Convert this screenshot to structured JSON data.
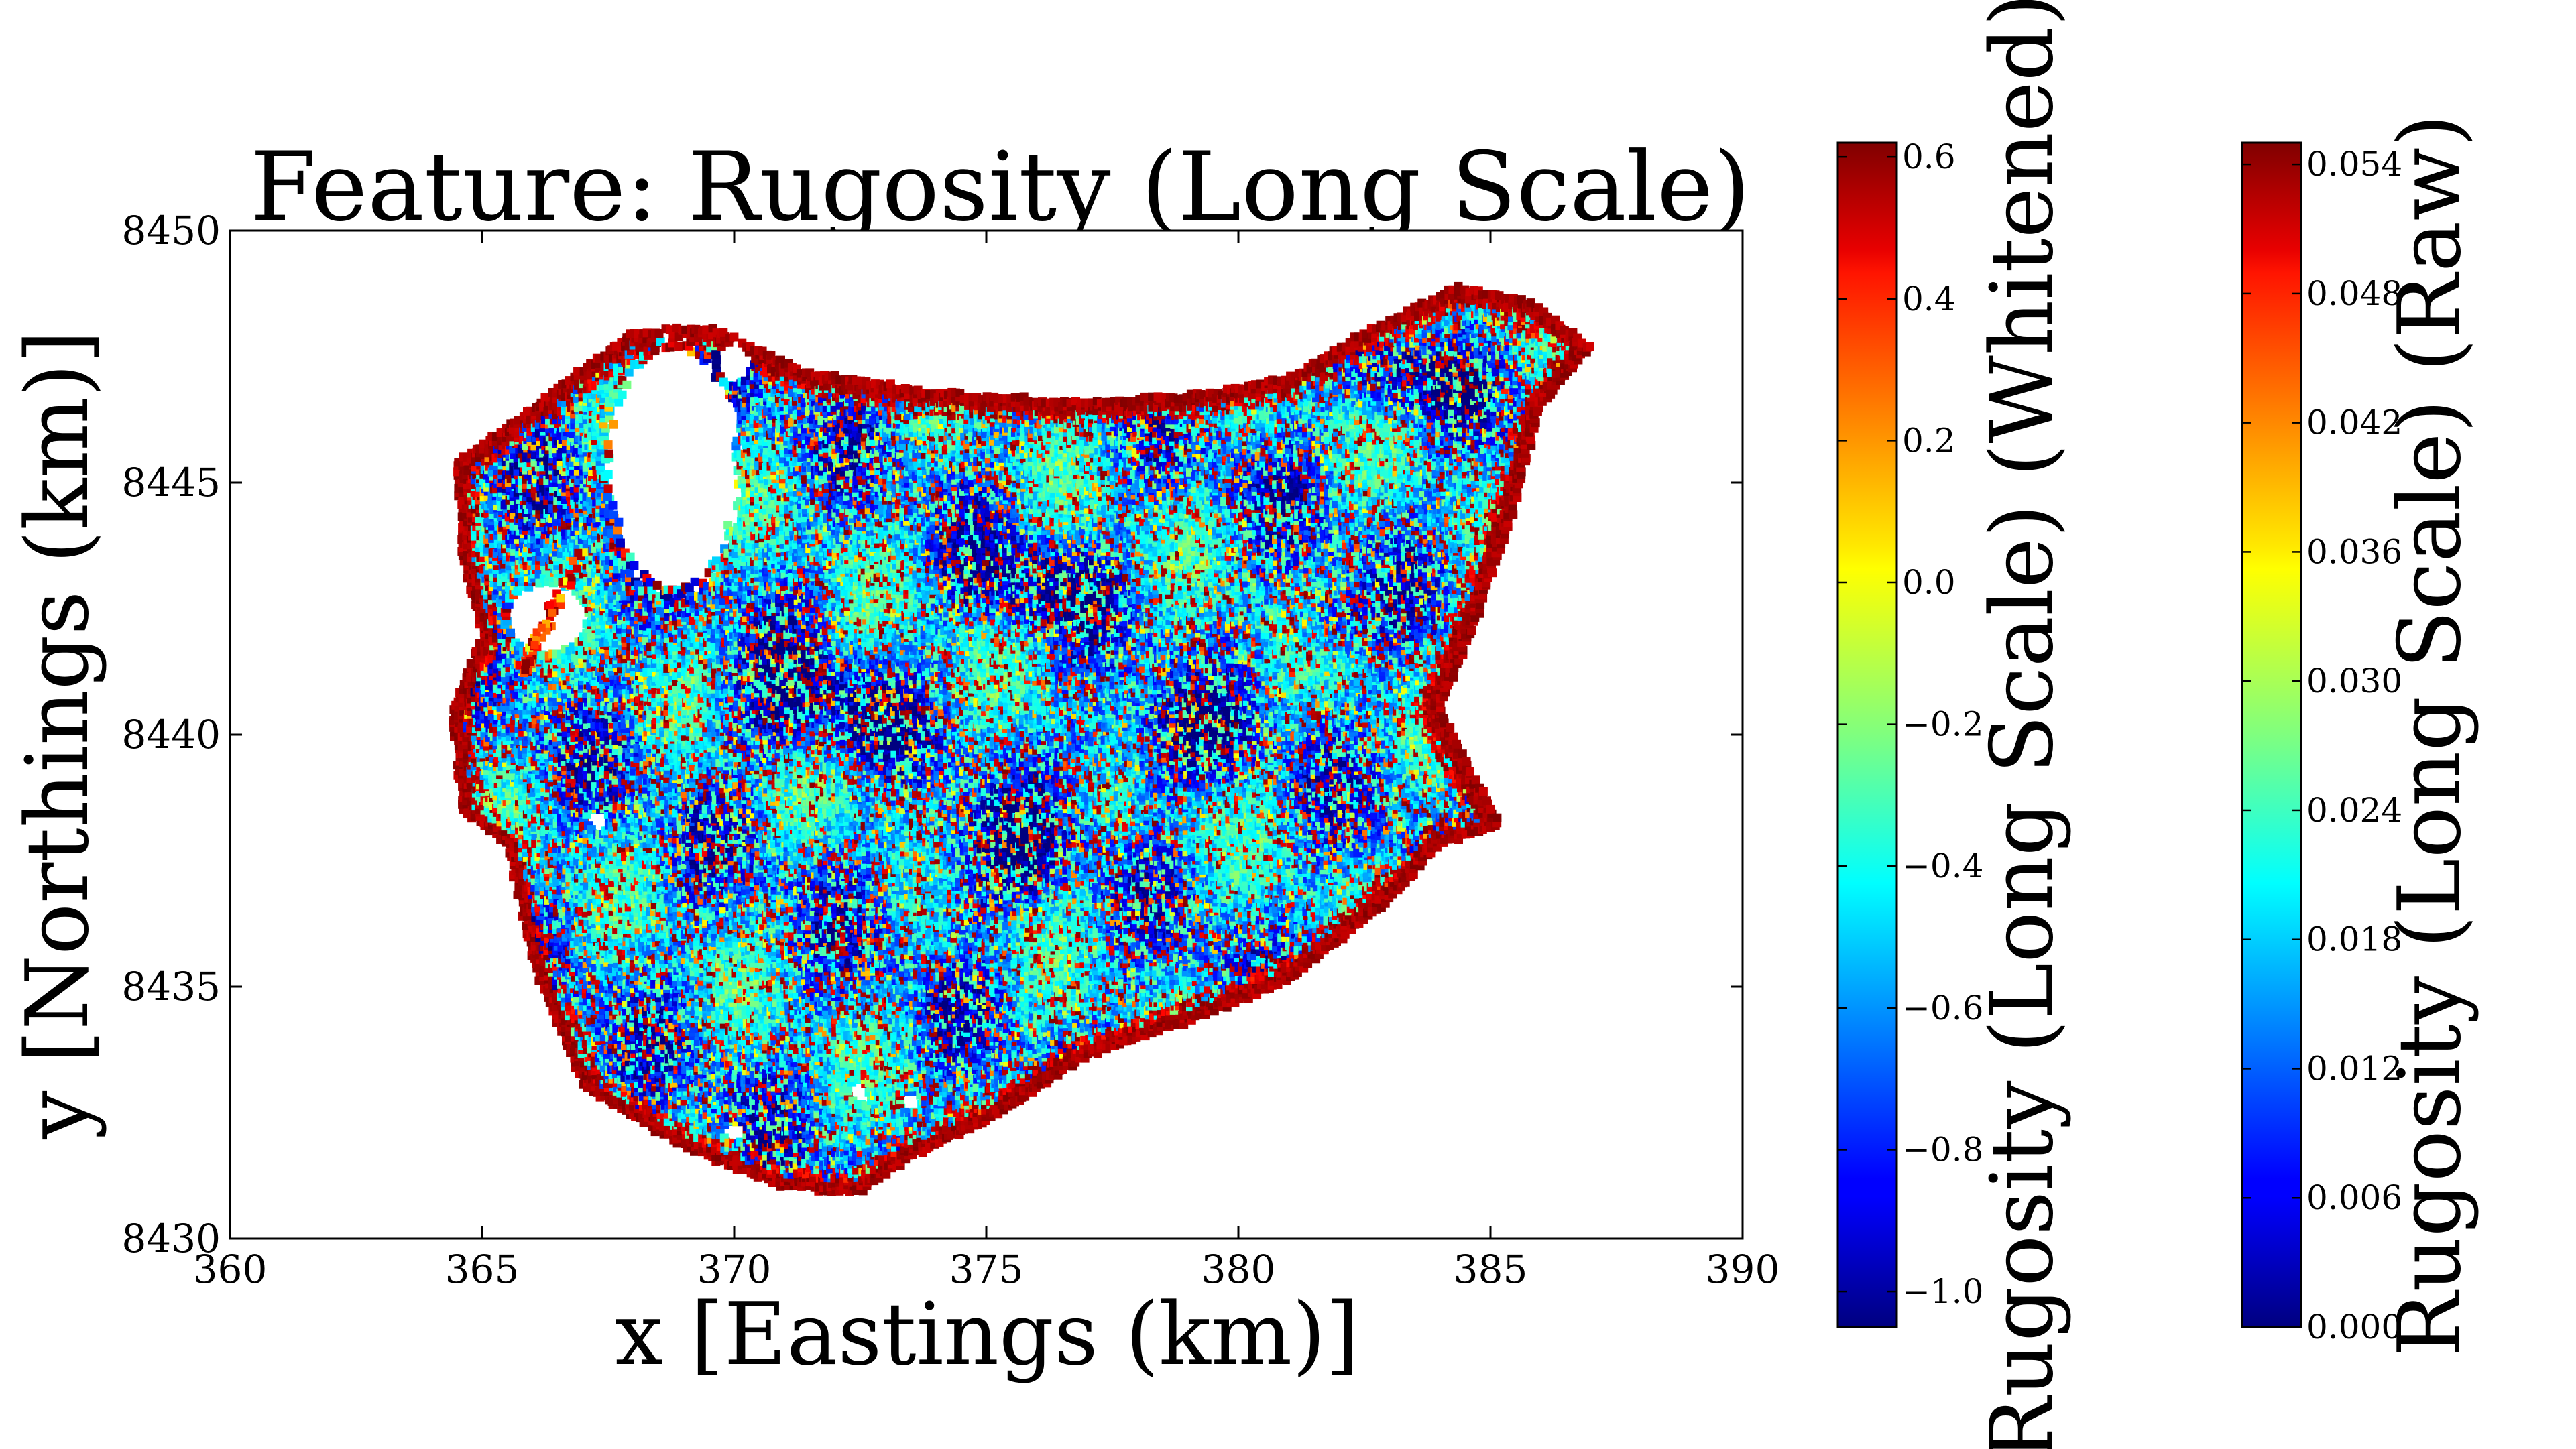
{
  "chart_data": {
    "type": "scatter",
    "title": "Feature: Rugosity (Long Scale)",
    "xlabel": "x [Eastings (km)]",
    "ylabel": "y [Northings (km)]",
    "xlim": [
      360,
      390
    ],
    "ylim": [
      8430,
      8450
    ],
    "xticks": [
      "360",
      "365",
      "370",
      "375",
      "380",
      "385",
      "390"
    ],
    "yticks": [
      "8430",
      "8435",
      "8440",
      "8445",
      "8450"
    ],
    "grid": false,
    "colormap": "jet",
    "colorbars": [
      {
        "label": "Rugosity (Long Scale) (Whitened)",
        "range": [
          -1.05,
          0.62
        ],
        "ticks": [
          "0.6",
          "0.4",
          "0.2",
          "0.0",
          "−0.2",
          "−0.4",
          "−0.6",
          "−0.8",
          "−1.0"
        ],
        "tick_values": [
          0.6,
          0.4,
          0.2,
          0.0,
          -0.2,
          -0.4,
          -0.6,
          -0.8,
          -1.0
        ]
      },
      {
        "label": "Rugosity (Long Scale) (Raw)",
        "range": [
          0.0,
          0.055
        ],
        "ticks": [
          "0.054",
          "0.048",
          "0.042",
          "0.036",
          "0.030",
          "0.024",
          "0.018",
          "0.012",
          "0.006",
          "0.000"
        ],
        "tick_values": [
          0.054,
          0.048,
          0.042,
          0.036,
          0.03,
          0.024,
          0.018,
          0.012,
          0.006,
          0.0
        ]
      }
    ],
    "survey_outline": [
      [
        364.5,
        8445.4
      ],
      [
        366.0,
        8446.5
      ],
      [
        368.0,
        8448.0
      ],
      [
        369.5,
        8448.1
      ],
      [
        371.5,
        8447.2
      ],
      [
        374.0,
        8446.8
      ],
      [
        377.0,
        8446.6
      ],
      [
        379.5,
        8446.8
      ],
      [
        381.0,
        8447.1
      ],
      [
        382.5,
        8448.0
      ],
      [
        384.3,
        8448.9
      ],
      [
        385.8,
        8448.6
      ],
      [
        387.0,
        8447.7
      ],
      [
        386.0,
        8446.5
      ],
      [
        385.5,
        8444.5
      ],
      [
        384.8,
        8442.5
      ],
      [
        384.0,
        8440.5
      ],
      [
        385.2,
        8438.2
      ],
      [
        384.0,
        8437.8
      ],
      [
        383.0,
        8436.7
      ],
      [
        381.0,
        8435.1
      ],
      [
        379.0,
        8434.3
      ],
      [
        377.0,
        8433.6
      ],
      [
        375.0,
        8432.3
      ],
      [
        373.5,
        8431.6
      ],
      [
        372.5,
        8430.9
      ],
      [
        371.0,
        8431.0
      ],
      [
        369.0,
        8431.8
      ],
      [
        367.0,
        8433.0
      ],
      [
        366.0,
        8435.5
      ],
      [
        365.5,
        8437.8
      ],
      [
        364.6,
        8438.5
      ],
      [
        364.4,
        8440.5
      ],
      [
        364.8,
        8441.5
      ],
      [
        365.0,
        8442.0
      ],
      [
        364.6,
        8443.5
      ]
    ],
    "holes": [
      {
        "x": 368.8,
        "y": 8445.3,
        "rx": 1.25,
        "ry": 2.4
      },
      {
        "x": 366.3,
        "y": 8442.3,
        "rx": 0.8,
        "ry": 0.7
      },
      {
        "x": 370.0,
        "y": 8447.4,
        "rx": 0.35,
        "ry": 0.4
      },
      {
        "x": 367.3,
        "y": 8438.3,
        "rx": 0.22,
        "ry": 0.22
      },
      {
        "x": 372.5,
        "y": 8432.9,
        "rx": 0.2,
        "ry": 0.2
      },
      {
        "x": 373.5,
        "y": 8432.7,
        "rx": 0.2,
        "ry": 0.2
      },
      {
        "x": 370.0,
        "y": 8432.1,
        "rx": 0.2,
        "ry": 0.2
      }
    ],
    "low_regions": [
      {
        "x": 378.5,
        "y": 8439.8,
        "rx": 2.2,
        "ry": 1.3
      },
      {
        "x": 381.8,
        "y": 8442.2,
        "rx": 1.0,
        "ry": 0.8
      },
      {
        "x": 383.5,
        "y": 8447.0,
        "rx": 1.6,
        "ry": 0.9
      },
      {
        "x": 371.5,
        "y": 8440.5,
        "rx": 2.5,
        "ry": 1.5
      },
      {
        "x": 376.0,
        "y": 8443.0,
        "rx": 2.0,
        "ry": 1.2
      },
      {
        "x": 375.0,
        "y": 8437.5,
        "rx": 2.0,
        "ry": 1.5
      }
    ],
    "n_points_approx": 9000
  }
}
